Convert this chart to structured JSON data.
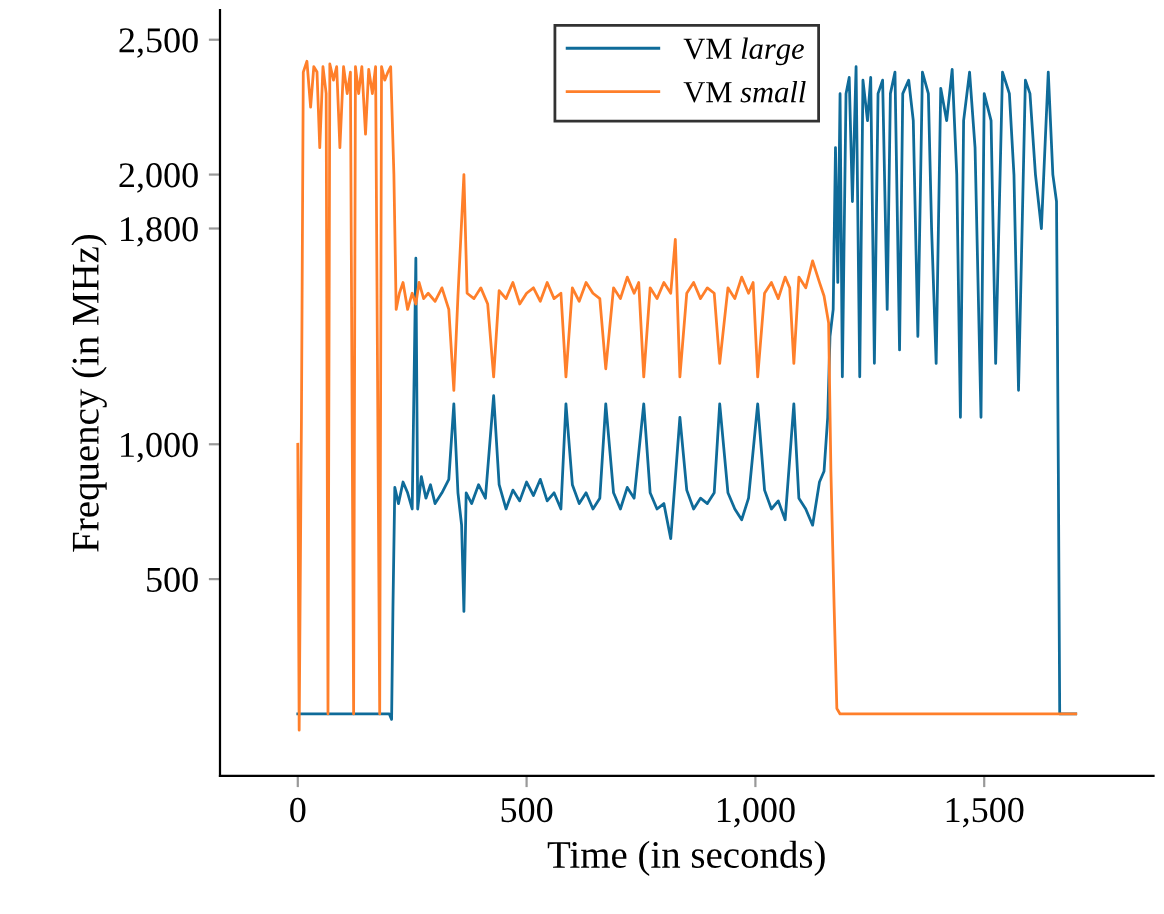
{
  "chart_data": {
    "type": "line",
    "xlabel": "Time (in seconds)",
    "ylabel": "Frequency (in MHz)",
    "xlim": [
      -170,
      1870
    ],
    "ylim": [
      -230,
      2610
    ],
    "xticks": [
      0,
      500,
      {
        "value": 1000,
        "label": "1,000"
      },
      {
        "value": 1500,
        "label": "1,500"
      }
    ],
    "yticks": [
      500,
      {
        "value": 1000,
        "label": "1,000"
      },
      {
        "value": 1800,
        "label": "1,800"
      },
      {
        "value": 2000,
        "label": "2,000"
      },
      {
        "value": 2500,
        "label": "2,500"
      }
    ],
    "grid": false,
    "legend": "top",
    "marker": "none",
    "line_style": "solid",
    "series": [
      {
        "name": "VM large",
        "color": "#0f6b99",
        "x": [
          0,
          100,
          180,
          200,
          205,
          208,
          212,
          220,
          230,
          240,
          250,
          258,
          262,
          270,
          280,
          290,
          300,
          315,
          330,
          341,
          350,
          358,
          363,
          368,
          380,
          395,
          410,
          428,
          440,
          455,
          470,
          485,
          500,
          515,
          530,
          545,
          560,
          575,
          586,
          600,
          615,
          630,
          645,
          660,
          673,
          690,
          705,
          720,
          735,
          756,
          770,
          785,
          800,
          815,
          835,
          850,
          865,
          880,
          895,
          910,
          922,
          940,
          955,
          970,
          985,
          1005,
          1020,
          1035,
          1050,
          1065,
          1084,
          1095,
          1110,
          1125,
          1140,
          1150,
          1158,
          1163,
          1170,
          1175,
          1180,
          1185,
          1190,
          1198,
          1205,
          1212,
          1220,
          1228,
          1235,
          1245,
          1252,
          1260,
          1268,
          1278,
          1288,
          1295,
          1305,
          1315,
          1322,
          1335,
          1345,
          1355,
          1365,
          1378,
          1385,
          1395,
          1405,
          1418,
          1430,
          1440,
          1448,
          1455,
          1468,
          1480,
          1493,
          1500,
          1515,
          1525,
          1540,
          1555,
          1565,
          1575,
          1590,
          1600,
          1612,
          1625,
          1640,
          1650,
          1658,
          1662,
          1665,
          1680,
          1700
        ],
        "values": [
          0,
          0,
          0,
          0,
          -20,
          400,
          840,
          780,
          860,
          820,
          760,
          1690,
          760,
          880,
          800,
          850,
          780,
          820,
          870,
          1150,
          820,
          700,
          380,
          820,
          780,
          850,
          800,
          1180,
          850,
          760,
          830,
          790,
          860,
          810,
          870,
          790,
          820,
          760,
          1150,
          850,
          780,
          820,
          760,
          800,
          1150,
          820,
          760,
          840,
          800,
          1150,
          820,
          760,
          780,
          650,
          1100,
          830,
          760,
          800,
          780,
          820,
          1150,
          820,
          760,
          720,
          800,
          1150,
          830,
          760,
          790,
          720,
          1150,
          800,
          760,
          700,
          860,
          900,
          1100,
          1400,
          1500,
          2100,
          1600,
          2300,
          1250,
          2300,
          2360,
          1900,
          2400,
          1250,
          2350,
          2200,
          2360,
          1300,
          2300,
          2350,
          1500,
          2300,
          2380,
          1350,
          2300,
          2350,
          2200,
          1400,
          2380,
          2300,
          1800,
          1300,
          2320,
          2200,
          2390,
          2000,
          1100,
          2200,
          2380,
          2100,
          1100,
          2300,
          2200,
          1300,
          2380,
          2300,
          2000,
          1200,
          2350,
          2300,
          2000,
          1800,
          2380,
          2000,
          1900,
          900,
          0,
          0,
          0
        ]
      },
      {
        "name": "VM small",
        "color": "#ff7f2a",
        "x": [
          0,
          3,
          8,
          12,
          20,
          28,
          35,
          42,
          48,
          55,
          62,
          66,
          70,
          78,
          85,
          92,
          100,
          108,
          115,
          122,
          126,
          133,
          140,
          148,
          155,
          163,
          170,
          179,
          183,
          190,
          197,
          203,
          210,
          215,
          222,
          230,
          240,
          250,
          258,
          265,
          275,
          285,
          300,
          315,
          330,
          341,
          350,
          363,
          370,
          385,
          400,
          415,
          428,
          440,
          455,
          470,
          485,
          500,
          515,
          530,
          545,
          560,
          575,
          586,
          600,
          615,
          630,
          645,
          660,
          673,
          690,
          705,
          720,
          735,
          745,
          756,
          770,
          785,
          800,
          815,
          825,
          835,
          850,
          865,
          880,
          895,
          910,
          922,
          940,
          955,
          970,
          985,
          995,
          1005,
          1020,
          1035,
          1050,
          1065,
          1075,
          1084,
          1095,
          1110,
          1125,
          1140,
          1150,
          1160,
          1165,
          1172,
          1178,
          1185,
          1300,
          1400,
          1500,
          1600,
          1700
        ],
        "values": [
          1000,
          -60,
          1100,
          2380,
          2420,
          2250,
          2400,
          2380,
          2100,
          2400,
          2300,
          0,
          2410,
          2350,
          2400,
          2100,
          2400,
          2300,
          2380,
          0,
          2400,
          2300,
          2400,
          2150,
          2390,
          2300,
          2400,
          0,
          2400,
          2350,
          2380,
          2400,
          2000,
          1500,
          1560,
          1600,
          1500,
          1560,
          1520,
          1600,
          1540,
          1560,
          1530,
          1580,
          1500,
          1200,
          1550,
          2000,
          1560,
          1540,
          1580,
          1520,
          1250,
          1570,
          1540,
          1600,
          1520,
          1560,
          1580,
          1530,
          1600,
          1540,
          1560,
          1250,
          1580,
          1530,
          1600,
          1560,
          1540,
          1280,
          1580,
          1540,
          1620,
          1560,
          1600,
          1250,
          1580,
          1540,
          1600,
          1560,
          1760,
          1250,
          1560,
          1600,
          1540,
          1580,
          1560,
          1300,
          1580,
          1540,
          1620,
          1560,
          1600,
          1250,
          1560,
          1600,
          1540,
          1620,
          1580,
          1300,
          1620,
          1580,
          1680,
          1600,
          1550,
          1450,
          900,
          400,
          20,
          0,
          0,
          0,
          0,
          0,
          0
        ]
      }
    ]
  }
}
